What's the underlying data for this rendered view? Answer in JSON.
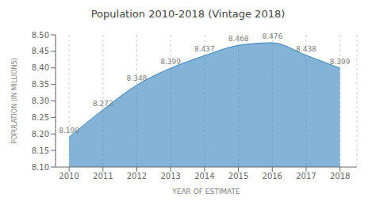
{
  "chart_data": {
    "type": "area",
    "title": "Population 2010-2018 (Vintage 2018)",
    "x_label": "YEAR OF ESTIMATE",
    "y_label": "POPULATION (IN MILLIONS)",
    "x": [
      2010,
      2011,
      2012,
      2013,
      2014,
      2015,
      2016,
      2017,
      2018
    ],
    "values": [
      8.19,
      8.273,
      8.348,
      8.399,
      8.437,
      8.468,
      8.476,
      8.438,
      8.399
    ],
    "value_labels": [
      "8.190",
      "8.273",
      "8.348",
      "8.399",
      "8.437",
      "8.468",
      "8.476",
      "8.438",
      "8.399"
    ],
    "data_labels": true,
    "xlim": [
      2009.6,
      2018.5
    ],
    "xticks": [
      2010,
      2011,
      2012,
      2013,
      2014,
      2015,
      2016,
      2017,
      2018
    ],
    "ylim": [
      8.1,
      8.5
    ],
    "yticks": [
      {
        "value": 8.1,
        "label": "8.10"
      },
      8.15,
      {
        "value": 8.2,
        "label": "8.20"
      },
      8.25,
      {
        "value": 8.3,
        "label": "8.30"
      },
      8.35,
      {
        "value": 8.4,
        "label": "8.40"
      },
      8.45,
      {
        "value": 8.5,
        "label": "8.50"
      }
    ],
    "grid": "x"
  }
}
